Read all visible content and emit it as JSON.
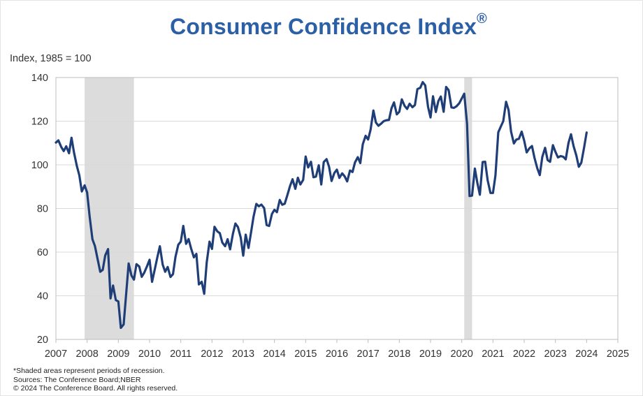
{
  "chart_data": {
    "type": "line",
    "title": "Consumer Confidence Index",
    "title_mark": "®",
    "ylabel": "Index, 1985 = 100",
    "xlabel": "",
    "ylim": [
      20,
      140
    ],
    "xlim": [
      2007,
      2025
    ],
    "y_ticks": [
      "20",
      "40",
      "60",
      "80",
      "100",
      "120",
      "140"
    ],
    "x_ticks": [
      "2007",
      "2008",
      "2009",
      "2010",
      "2011",
      "2012",
      "2013",
      "2014",
      "2015",
      "2016",
      "2017",
      "2018",
      "2019",
      "2020",
      "2021",
      "2022",
      "2023",
      "2024",
      "2025"
    ],
    "grid": true,
    "line_color": "#1f3e78",
    "recession_color": "#dcdcdc",
    "recessions": [
      {
        "start": 2007.92,
        "end": 2009.5
      },
      {
        "start": 2020.08,
        "end": 2020.33
      }
    ],
    "series": [
      {
        "name": "Consumer Confidence Index",
        "points": [
          [
            2007.0,
            110.2
          ],
          [
            2007.08,
            111.2
          ],
          [
            2007.17,
            108.2
          ],
          [
            2007.25,
            106.3
          ],
          [
            2007.33,
            108.5
          ],
          [
            2007.42,
            105.3
          ],
          [
            2007.5,
            112.4
          ],
          [
            2007.58,
            105.6
          ],
          [
            2007.67,
            99.5
          ],
          [
            2007.75,
            95.2
          ],
          [
            2007.83,
            87.8
          ],
          [
            2007.92,
            90.6
          ],
          [
            2008.0,
            87.3
          ],
          [
            2008.08,
            76.4
          ],
          [
            2008.17,
            65.9
          ],
          [
            2008.25,
            62.8
          ],
          [
            2008.33,
            57.2
          ],
          [
            2008.42,
            51.0
          ],
          [
            2008.5,
            51.9
          ],
          [
            2008.58,
            58.5
          ],
          [
            2008.67,
            61.4
          ],
          [
            2008.75,
            38.8
          ],
          [
            2008.83,
            44.7
          ],
          [
            2008.92,
            38.0
          ],
          [
            2009.0,
            37.4
          ],
          [
            2009.08,
            25.3
          ],
          [
            2009.17,
            26.9
          ],
          [
            2009.25,
            40.8
          ],
          [
            2009.33,
            54.8
          ],
          [
            2009.42,
            49.3
          ],
          [
            2009.5,
            47.4
          ],
          [
            2009.58,
            54.5
          ],
          [
            2009.67,
            53.4
          ],
          [
            2009.75,
            48.7
          ],
          [
            2009.83,
            50.6
          ],
          [
            2009.92,
            53.6
          ],
          [
            2010.0,
            56.5
          ],
          [
            2010.08,
            46.4
          ],
          [
            2010.17,
            52.3
          ],
          [
            2010.25,
            57.7
          ],
          [
            2010.33,
            62.7
          ],
          [
            2010.42,
            54.3
          ],
          [
            2010.5,
            51.0
          ],
          [
            2010.58,
            53.2
          ],
          [
            2010.67,
            48.6
          ],
          [
            2010.75,
            49.9
          ],
          [
            2010.83,
            57.8
          ],
          [
            2010.92,
            63.4
          ],
          [
            2011.0,
            64.8
          ],
          [
            2011.08,
            72.0
          ],
          [
            2011.17,
            63.8
          ],
          [
            2011.25,
            66.0
          ],
          [
            2011.33,
            61.7
          ],
          [
            2011.42,
            57.6
          ],
          [
            2011.5,
            59.2
          ],
          [
            2011.58,
            45.2
          ],
          [
            2011.67,
            46.4
          ],
          [
            2011.75,
            40.9
          ],
          [
            2011.83,
            55.2
          ],
          [
            2011.92,
            64.8
          ],
          [
            2012.0,
            61.5
          ],
          [
            2012.08,
            71.6
          ],
          [
            2012.17,
            69.5
          ],
          [
            2012.25,
            68.7
          ],
          [
            2012.33,
            64.4
          ],
          [
            2012.42,
            62.7
          ],
          [
            2012.5,
            65.9
          ],
          [
            2012.58,
            61.3
          ],
          [
            2012.67,
            68.4
          ],
          [
            2012.75,
            73.1
          ],
          [
            2012.83,
            71.5
          ],
          [
            2012.92,
            66.7
          ],
          [
            2013.0,
            58.4
          ],
          [
            2013.08,
            68.0
          ],
          [
            2013.17,
            61.9
          ],
          [
            2013.25,
            69.0
          ],
          [
            2013.33,
            76.2
          ],
          [
            2013.42,
            82.1
          ],
          [
            2013.5,
            81.0
          ],
          [
            2013.58,
            81.8
          ],
          [
            2013.67,
            80.2
          ],
          [
            2013.75,
            72.4
          ],
          [
            2013.83,
            72.0
          ],
          [
            2013.92,
            77.5
          ],
          [
            2014.0,
            79.4
          ],
          [
            2014.08,
            78.3
          ],
          [
            2014.17,
            83.9
          ],
          [
            2014.25,
            81.7
          ],
          [
            2014.33,
            82.2
          ],
          [
            2014.42,
            86.4
          ],
          [
            2014.5,
            90.3
          ],
          [
            2014.58,
            93.4
          ],
          [
            2014.67,
            89.0
          ],
          [
            2014.75,
            94.1
          ],
          [
            2014.83,
            91.0
          ],
          [
            2014.92,
            93.1
          ],
          [
            2015.0,
            103.8
          ],
          [
            2015.08,
            98.8
          ],
          [
            2015.17,
            101.4
          ],
          [
            2015.25,
            94.3
          ],
          [
            2015.33,
            94.6
          ],
          [
            2015.42,
            99.8
          ],
          [
            2015.5,
            91.0
          ],
          [
            2015.58,
            101.3
          ],
          [
            2015.67,
            102.6
          ],
          [
            2015.75,
            99.1
          ],
          [
            2015.83,
            92.6
          ],
          [
            2015.92,
            96.3
          ],
          [
            2016.0,
            97.8
          ],
          [
            2016.08,
            94.0
          ],
          [
            2016.17,
            96.1
          ],
          [
            2016.25,
            94.7
          ],
          [
            2016.33,
            92.4
          ],
          [
            2016.42,
            97.4
          ],
          [
            2016.5,
            96.7
          ],
          [
            2016.58,
            101.1
          ],
          [
            2016.67,
            103.5
          ],
          [
            2016.75,
            100.8
          ],
          [
            2016.83,
            109.4
          ],
          [
            2016.92,
            113.3
          ],
          [
            2017.0,
            111.6
          ],
          [
            2017.08,
            116.1
          ],
          [
            2017.17,
            124.9
          ],
          [
            2017.25,
            119.4
          ],
          [
            2017.33,
            117.9
          ],
          [
            2017.42,
            118.9
          ],
          [
            2017.5,
            120.0
          ],
          [
            2017.58,
            120.4
          ],
          [
            2017.67,
            120.6
          ],
          [
            2017.75,
            125.9
          ],
          [
            2017.83,
            128.6
          ],
          [
            2017.92,
            123.1
          ],
          [
            2018.0,
            124.3
          ],
          [
            2018.08,
            130.0
          ],
          [
            2018.17,
            127.0
          ],
          [
            2018.25,
            125.6
          ],
          [
            2018.33,
            128.0
          ],
          [
            2018.42,
            126.4
          ],
          [
            2018.5,
            127.4
          ],
          [
            2018.58,
            134.7
          ],
          [
            2018.67,
            135.3
          ],
          [
            2018.75,
            137.9
          ],
          [
            2018.83,
            136.4
          ],
          [
            2018.92,
            126.6
          ],
          [
            2019.0,
            121.7
          ],
          [
            2019.08,
            131.4
          ],
          [
            2019.17,
            124.2
          ],
          [
            2019.25,
            129.2
          ],
          [
            2019.33,
            131.3
          ],
          [
            2019.42,
            124.3
          ],
          [
            2019.5,
            135.7
          ],
          [
            2019.58,
            134.2
          ],
          [
            2019.67,
            126.3
          ],
          [
            2019.75,
            126.1
          ],
          [
            2019.83,
            126.8
          ],
          [
            2019.92,
            128.2
          ],
          [
            2020.0,
            130.4
          ],
          [
            2020.08,
            132.6
          ],
          [
            2020.17,
            118.8
          ],
          [
            2020.25,
            85.7
          ],
          [
            2020.33,
            85.9
          ],
          [
            2020.42,
            98.3
          ],
          [
            2020.5,
            91.7
          ],
          [
            2020.58,
            86.3
          ],
          [
            2020.67,
            101.3
          ],
          [
            2020.75,
            101.4
          ],
          [
            2020.83,
            92.9
          ],
          [
            2020.92,
            87.1
          ],
          [
            2021.0,
            87.1
          ],
          [
            2021.08,
            95.2
          ],
          [
            2021.17,
            114.9
          ],
          [
            2021.25,
            117.5
          ],
          [
            2021.33,
            120.0
          ],
          [
            2021.42,
            128.9
          ],
          [
            2021.5,
            125.1
          ],
          [
            2021.58,
            115.2
          ],
          [
            2021.67,
            109.8
          ],
          [
            2021.75,
            111.6
          ],
          [
            2021.83,
            111.9
          ],
          [
            2021.92,
            115.2
          ],
          [
            2022.0,
            111.1
          ],
          [
            2022.08,
            105.7
          ],
          [
            2022.17,
            107.6
          ],
          [
            2022.25,
            108.6
          ],
          [
            2022.33,
            103.2
          ],
          [
            2022.42,
            98.4
          ],
          [
            2022.5,
            95.3
          ],
          [
            2022.58,
            103.6
          ],
          [
            2022.67,
            107.8
          ],
          [
            2022.75,
            102.2
          ],
          [
            2022.83,
            101.4
          ],
          [
            2022.92,
            109.0
          ],
          [
            2023.0,
            106.0
          ],
          [
            2023.08,
            103.4
          ],
          [
            2023.17,
            104.0
          ],
          [
            2023.25,
            103.7
          ],
          [
            2023.33,
            102.5
          ],
          [
            2023.42,
            110.1
          ],
          [
            2023.5,
            114.0
          ],
          [
            2023.58,
            108.7
          ],
          [
            2023.67,
            104.3
          ],
          [
            2023.75,
            99.1
          ],
          [
            2023.83,
            101.0
          ],
          [
            2023.92,
            108.0
          ],
          [
            2024.0,
            114.8
          ]
        ]
      }
    ]
  },
  "footnotes": {
    "recession_note": "*Shaded areas represent periods of recession.",
    "sources": "Sources: The Conference Board;NBER",
    "copyright": "© 2024 The Conference Board. All rights reserved."
  }
}
